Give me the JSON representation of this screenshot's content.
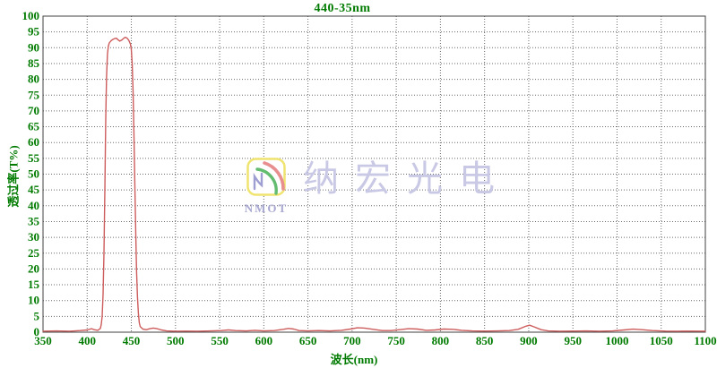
{
  "chart_data": {
    "type": "line",
    "title": "440-35nm",
    "xlabel": "波长(nm)",
    "ylabel": "透过率(T%)",
    "xlim": [
      350,
      1100
    ],
    "ylim": [
      0,
      100
    ],
    "x_tick_step": 50,
    "y_tick_step": 5,
    "grid": true,
    "legend_position": "none",
    "axis_text_color": "#007b00",
    "grid_color": "#6a6a6a",
    "border_color": "#404040",
    "line_color": "#cd5c5c",
    "series": [
      {
        "name": "transmission",
        "points": [
          [
            350,
            0.3
          ],
          [
            365,
            0.4
          ],
          [
            380,
            0.3
          ],
          [
            392,
            0.5
          ],
          [
            400,
            0.7
          ],
          [
            405,
            1.1
          ],
          [
            408,
            0.8
          ],
          [
            412,
            0.6
          ],
          [
            415,
            1.2
          ],
          [
            416,
            2.5
          ],
          [
            417,
            5
          ],
          [
            418,
            12
          ],
          [
            419,
            25
          ],
          [
            420,
            45
          ],
          [
            421,
            68
          ],
          [
            422,
            81
          ],
          [
            423,
            88
          ],
          [
            424,
            90.5
          ],
          [
            425,
            91.5
          ],
          [
            427,
            92.2
          ],
          [
            429,
            92.6
          ],
          [
            431,
            92.9
          ],
          [
            433,
            93.0
          ],
          [
            435,
            92.5
          ],
          [
            437,
            92.1
          ],
          [
            439,
            92.4
          ],
          [
            441,
            92.9
          ],
          [
            443,
            93.3
          ],
          [
            445,
            93.1
          ],
          [
            447,
            92.4
          ],
          [
            449,
            91.2
          ],
          [
            450,
            89.5
          ],
          [
            451,
            85
          ],
          [
            452,
            76
          ],
          [
            453,
            62
          ],
          [
            454,
            46
          ],
          [
            455,
            31
          ],
          [
            456,
            19
          ],
          [
            457,
            11
          ],
          [
            458,
            6
          ],
          [
            459,
            3
          ],
          [
            460,
            1.8
          ],
          [
            463,
            1.0
          ],
          [
            467,
            0.8
          ],
          [
            471,
            1.1
          ],
          [
            475,
            1.3
          ],
          [
            479,
            1.1
          ],
          [
            484,
            0.7
          ],
          [
            490,
            0.4
          ],
          [
            500,
            0.3
          ],
          [
            512,
            0.35
          ],
          [
            525,
            0.3
          ],
          [
            540,
            0.4
          ],
          [
            552,
            0.5
          ],
          [
            560,
            0.7
          ],
          [
            568,
            0.5
          ],
          [
            580,
            0.4
          ],
          [
            590,
            0.6
          ],
          [
            600,
            0.4
          ],
          [
            612,
            0.5
          ],
          [
            622,
            0.9
          ],
          [
            628,
            1.2
          ],
          [
            634,
            1.0
          ],
          [
            640,
            0.5
          ],
          [
            650,
            0.4
          ],
          [
            662,
            0.5
          ],
          [
            675,
            0.4
          ],
          [
            688,
            0.6
          ],
          [
            698,
            1.0
          ],
          [
            706,
            1.4
          ],
          [
            714,
            1.3
          ],
          [
            724,
            0.9
          ],
          [
            734,
            0.5
          ],
          [
            744,
            0.5
          ],
          [
            754,
            0.8
          ],
          [
            764,
            1.1
          ],
          [
            774,
            1.0
          ],
          [
            784,
            0.6
          ],
          [
            794,
            0.7
          ],
          [
            804,
            1.0
          ],
          [
            814,
            0.9
          ],
          [
            824,
            0.6
          ],
          [
            836,
            0.4
          ],
          [
            850,
            0.35
          ],
          [
            865,
            0.4
          ],
          [
            878,
            0.5
          ],
          [
            888,
            0.9
          ],
          [
            896,
            1.8
          ],
          [
            901,
            2.2
          ],
          [
            906,
            1.7
          ],
          [
            914,
            0.8
          ],
          [
            922,
            0.4
          ],
          [
            935,
            0.3
          ],
          [
            950,
            0.35
          ],
          [
            965,
            0.4
          ],
          [
            980,
            0.3
          ],
          [
            995,
            0.4
          ],
          [
            1008,
            0.7
          ],
          [
            1018,
            0.95
          ],
          [
            1028,
            0.8
          ],
          [
            1040,
            0.5
          ],
          [
            1055,
            0.35
          ],
          [
            1070,
            0.3
          ],
          [
            1085,
            0.35
          ],
          [
            1100,
            0.3
          ]
        ]
      }
    ]
  },
  "watermark": {
    "logo_acronym": "NMOT",
    "brand_name": "纳宏光电",
    "logo_border_color": "#f0e470",
    "logo_arc_green": "#63bc70",
    "logo_arc_red": "#e89090",
    "logo_n_color": "#9e9ed2",
    "text_color": "#c9c9e6"
  }
}
